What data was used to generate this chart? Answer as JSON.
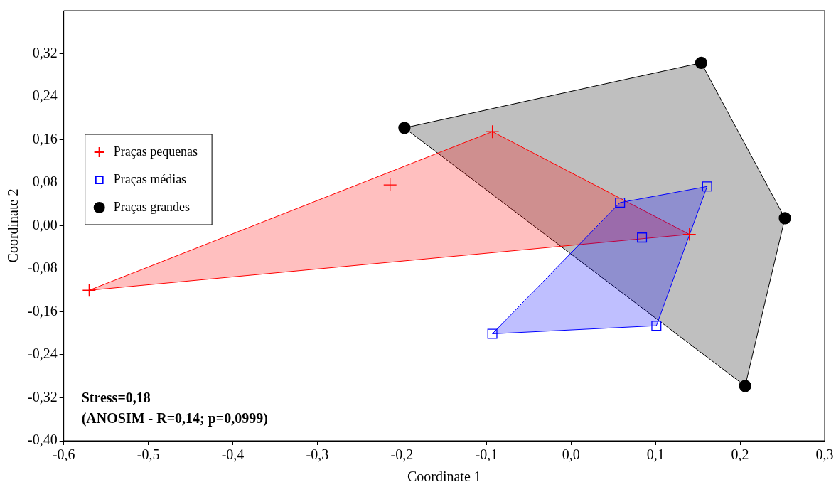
{
  "chart_data": {
    "type": "scatter",
    "xlabel": "Coordinate 1",
    "ylabel": "Coordinate 2",
    "xlim": [
      -0.6,
      0.3
    ],
    "ylim": [
      -0.4,
      0.4
    ],
    "xticks": [
      {
        "value": -0.6,
        "label": "-0,6"
      },
      {
        "value": -0.5,
        "label": "-0,5"
      },
      {
        "value": -0.4,
        "label": "-0,4"
      },
      {
        "value": -0.3,
        "label": "-0,3"
      },
      {
        "value": -0.2,
        "label": "-0,2"
      },
      {
        "value": -0.1,
        "label": "-0,1"
      },
      {
        "value": 0,
        "label": "0,0"
      },
      {
        "value": 0.1,
        "label": "0,1"
      },
      {
        "value": 0.2,
        "label": "0,2"
      },
      {
        "value": 0.3,
        "label": "0,3"
      }
    ],
    "yticks": [
      {
        "value": -0.4,
        "label": "-0,40"
      },
      {
        "value": -0.32,
        "label": "-0,32"
      },
      {
        "value": -0.24,
        "label": "-0,24"
      },
      {
        "value": -0.16,
        "label": "-0,16"
      },
      {
        "value": -0.08,
        "label": "-0,08"
      },
      {
        "value": 0,
        "label": "0,00"
      },
      {
        "value": 0.08,
        "label": "0,08"
      },
      {
        "value": 0.16,
        "label": "0,16"
      },
      {
        "value": 0.24,
        "label": "0,24"
      },
      {
        "value": 0.32,
        "label": "0,32"
      },
      {
        "value": 0.4,
        "label": null
      }
    ],
    "grid": false,
    "legend": "top left",
    "annotations": [
      "Stress=0,18",
      "(ANOSIM - R=0,14; p=0,0999)"
    ],
    "series": [
      {
        "type": "area",
        "color": "#000000",
        "x": [
          -0.197,
          0.154,
          0.253,
          0.206,
          -0.197
        ],
        "values": [
          0.182,
          0.303,
          0.014,
          -0.298,
          0.182
        ]
      },
      {
        "type": "area",
        "color": "#ff0000",
        "x": [
          -0.57,
          -0.093,
          0.14,
          -0.57
        ],
        "values": [
          -0.12,
          0.175,
          -0.016,
          -0.12
        ]
      },
      {
        "type": "area",
        "color": "#0000ff",
        "x": [
          -0.093,
          0.101,
          0.161,
          0.058,
          -0.093
        ],
        "values": [
          -0.201,
          -0.186,
          0.073,
          0.043,
          -0.201
        ]
      },
      {
        "name": "Praças pequenas",
        "color": "#ff0000",
        "marker": "cross",
        "x": [
          -0.57,
          -0.214,
          -0.093,
          0.14
        ],
        "values": [
          -0.12,
          0.076,
          0.175,
          -0.016
        ]
      },
      {
        "name": "Praças médias",
        "color": "#0000ff",
        "marker": "square",
        "x": [
          -0.093,
          0.101,
          0.161,
          0.058,
          0.084
        ],
        "values": [
          -0.201,
          -0.186,
          0.073,
          0.043,
          -0.022
        ]
      },
      {
        "name": "Praças grandes",
        "color": "#000000",
        "marker": "circle",
        "x": [
          -0.197,
          0.154,
          0.253,
          0.206
        ],
        "values": [
          0.182,
          0.303,
          0.014,
          -0.298
        ]
      }
    ]
  }
}
